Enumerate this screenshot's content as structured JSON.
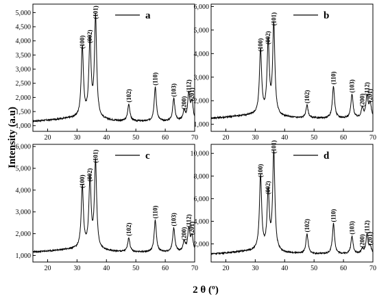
{
  "figure": {
    "ylabel": "Intensity (a.u)",
    "xlabel": "2 θ (º)"
  },
  "chart_data": [
    {
      "type": "line",
      "panel": "a",
      "legend": "a",
      "xlim": [
        15,
        70
      ],
      "ylim": [
        800,
        5300
      ],
      "xticks": [
        20,
        30,
        40,
        50,
        60,
        70
      ],
      "xtick_labels": [
        "20",
        "30",
        "40",
        "50",
        "60",
        "70"
      ],
      "yticks": [
        1000,
        1500,
        2000,
        2500,
        3000,
        3500,
        4000,
        4500,
        5000
      ],
      "ytick_labels": [
        "1,000",
        "1,500",
        "2,000",
        "2,500",
        "3,000",
        "3,500",
        "4,000",
        "4,500",
        "5,000"
      ],
      "baseline": 1150,
      "peaks": [
        {
          "x": 31.8,
          "y": 3650,
          "label": "(100)"
        },
        {
          "x": 34.4,
          "y": 3850,
          "label": "(002)"
        },
        {
          "x": 36.3,
          "y": 4700,
          "label": "(101)"
        },
        {
          "x": 47.6,
          "y": 1750,
          "label": "(102)"
        },
        {
          "x": 56.6,
          "y": 2350,
          "label": "(110)"
        },
        {
          "x": 62.9,
          "y": 1950,
          "label": "(103)"
        },
        {
          "x": 66.4,
          "y": 1500,
          "label": "(200)"
        },
        {
          "x": 68.0,
          "y": 2100,
          "label": "(112)"
        },
        {
          "x": 69.1,
          "y": 1800,
          "label": "(201)"
        }
      ]
    },
    {
      "type": "line",
      "panel": "b",
      "legend": "b",
      "xlim": [
        15,
        70
      ],
      "ylim": [
        700,
        6100
      ],
      "xticks": [
        20,
        30,
        40,
        50,
        60,
        70
      ],
      "xtick_labels": [
        "20",
        "30",
        "40",
        "50",
        "60",
        "70"
      ],
      "yticks": [
        1000,
        2000,
        3000,
        4000,
        5000,
        6000
      ],
      "ytick_labels": [
        "1,000",
        "2,000",
        "3,000",
        "4,000",
        "5,000",
        "6,000"
      ],
      "baseline": 1250,
      "peaks": [
        {
          "x": 31.8,
          "y": 4000,
          "label": "(100)"
        },
        {
          "x": 34.4,
          "y": 4300,
          "label": "(002)"
        },
        {
          "x": 36.3,
          "y": 5100,
          "label": "(101)"
        },
        {
          "x": 47.6,
          "y": 1800,
          "label": "(102)"
        },
        {
          "x": 56.6,
          "y": 2600,
          "label": "(110)"
        },
        {
          "x": 62.9,
          "y": 2250,
          "label": "(103)"
        },
        {
          "x": 66.4,
          "y": 1650,
          "label": "(200)"
        },
        {
          "x": 68.0,
          "y": 2150,
          "label": "(112)"
        },
        {
          "x": 69.1,
          "y": 1850,
          "label": "(201)"
        }
      ]
    },
    {
      "type": "line",
      "panel": "c",
      "legend": "c",
      "xlim": [
        15,
        70
      ],
      "ylim": [
        700,
        6100
      ],
      "xticks": [
        20,
        30,
        40,
        50,
        60,
        70
      ],
      "xtick_labels": [
        "20",
        "30",
        "40",
        "50",
        "60",
        "70"
      ],
      "yticks": [
        1000,
        2000,
        3000,
        4000,
        5000,
        6000
      ],
      "ytick_labels": [
        "1,000",
        "2,000",
        "3,000",
        "4,000",
        "5,000",
        "6,000"
      ],
      "baseline": 1150,
      "peaks": [
        {
          "x": 31.8,
          "y": 4000,
          "label": "(100)"
        },
        {
          "x": 34.4,
          "y": 4300,
          "label": "(002)"
        },
        {
          "x": 36.3,
          "y": 5150,
          "label": "(101)"
        },
        {
          "x": 47.6,
          "y": 1800,
          "label": "(102)"
        },
        {
          "x": 56.6,
          "y": 2600,
          "label": "(110)"
        },
        {
          "x": 62.9,
          "y": 2250,
          "label": "(103)"
        },
        {
          "x": 66.4,
          "y": 1600,
          "label": "(200)"
        },
        {
          "x": 68.0,
          "y": 2200,
          "label": "(112)"
        },
        {
          "x": 69.1,
          "y": 1850,
          "label": "(201)"
        }
      ]
    },
    {
      "type": "line",
      "panel": "d",
      "legend": "d",
      "xlim": [
        15,
        70
      ],
      "ylim": [
        400,
        10800
      ],
      "xticks": [
        20,
        30,
        40,
        50,
        60,
        70
      ],
      "xtick_labels": [
        "20",
        "30",
        "40",
        "50",
        "60",
        "70"
      ],
      "yticks": [
        2000,
        4000,
        6000,
        8000,
        10000
      ],
      "ytick_labels": [
        "2,000",
        "4,000",
        "6,000",
        "8,000",
        "10,000"
      ],
      "baseline": 1100,
      "peaks": [
        {
          "x": 31.8,
          "y": 7700,
          "label": "(100)"
        },
        {
          "x": 34.4,
          "y": 6200,
          "label": "(002)"
        },
        {
          "x": 36.3,
          "y": 9800,
          "label": "(101)"
        },
        {
          "x": 47.6,
          "y": 2850,
          "label": "(102)"
        },
        {
          "x": 56.6,
          "y": 3750,
          "label": "(110)"
        },
        {
          "x": 62.9,
          "y": 2650,
          "label": "(103)"
        },
        {
          "x": 66.4,
          "y": 1500,
          "label": "(200)"
        },
        {
          "x": 68.0,
          "y": 2750,
          "label": "(112)"
        },
        {
          "x": 69.1,
          "y": 1700,
          "label": "(201)"
        }
      ]
    }
  ]
}
